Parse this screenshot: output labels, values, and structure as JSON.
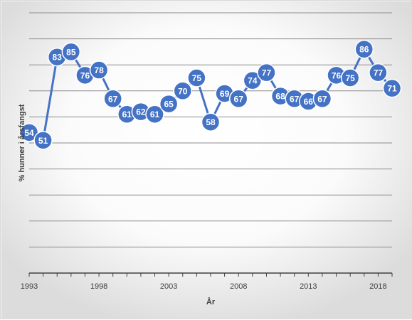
{
  "chart_data": {
    "type": "line",
    "title": "",
    "xlabel": "År",
    "ylabel": "% hunner i årsfangst",
    "x": [
      1993,
      1994,
      1995,
      1996,
      1997,
      1998,
      1999,
      2000,
      2001,
      2002,
      2003,
      2004,
      2005,
      2006,
      2007,
      2008,
      2009,
      2010,
      2011,
      2012,
      2013,
      2014,
      2015,
      2016,
      2017,
      2018,
      2019
    ],
    "series": [
      {
        "values": [
          54,
          51,
          83,
          85,
          76,
          78,
          67,
          61,
          62,
          61,
          65,
          70,
          75,
          58,
          69,
          67,
          74,
          77,
          68,
          67,
          66,
          67,
          76,
          75,
          86,
          77,
          71
        ]
      }
    ],
    "x_ticks": [
      1993,
      1998,
      2003,
      2008,
      2013,
      2018
    ],
    "ylim": [
      0,
      100
    ],
    "grid": true,
    "legend": "none",
    "colors": {
      "line": "#4472c4",
      "marker_fill": "#4472c4",
      "marker_stroke": "#ffffff",
      "grid": "#8c8c8c",
      "background": "#f2f2f2"
    }
  }
}
